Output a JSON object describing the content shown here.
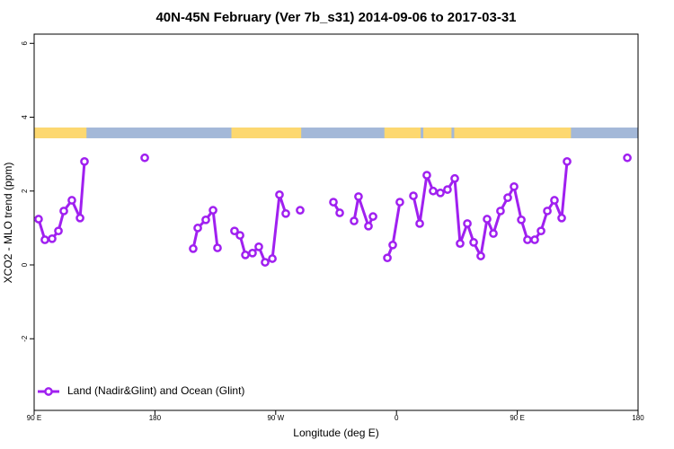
{
  "chart_data": {
    "type": "line",
    "title": "40N-45N February (Ver 7b_s31)   2014-09-06 to 2017-03-31",
    "x_label": "Longitude (deg E)",
    "y_label": "XCO2 - MLO trend (ppm)",
    "xlim": [
      90,
      540
    ],
    "ylim": [
      -3.94,
      6.25
    ],
    "xticks": [
      {
        "value": 90,
        "label": "90 E"
      },
      {
        "value": 180,
        "label": "180"
      },
      {
        "value": 270,
        "label": "90 W"
      },
      {
        "value": 360,
        "label": "0"
      },
      {
        "value": 450,
        "label": "90 E"
      },
      {
        "value": 540,
        "label": "180"
      }
    ],
    "yticks": [
      -2,
      0,
      2,
      4,
      6
    ],
    "legend": "bottomleft",
    "surface_band": {
      "ylim": [
        3.43,
        3.72
      ],
      "ocean_color": "#a3b8d8",
      "land_color": "#fdd870",
      "land": [
        [
          90,
          129
        ],
        [
          237,
          289
        ],
        [
          351,
          378
        ],
        [
          380,
          401
        ],
        [
          403,
          490
        ]
      ]
    },
    "x": [
      93.3,
      98.0,
      103.4,
      108.1,
      112.1,
      118.1,
      124.2,
      127.5,
      null,
      172.4,
      null,
      208.5,
      211.9,
      217.9,
      223.3,
      226.6,
      null,
      239.3,
      243.4,
      247.4,
      252.7,
      257.4,
      262.1,
      267.5,
      272.8,
      277.5,
      null,
      288.2,
      null,
      313.0,
      317.7,
      null,
      328.4,
      331.7,
      339.1,
      342.5,
      null,
      353.2,
      357.2,
      362.5,
      null,
      372.6,
      377.3,
      382.6,
      387.3,
      392.7,
      398.0,
      403.4,
      407.4,
      412.8,
      417.5,
      422.8,
      427.5,
      432.2,
      437.5,
      442.9,
      447.6,
      453.0,
      457.6,
      463.0,
      467.7,
      472.4,
      477.7,
      483.1,
      487.1,
      null,
      532.0
    ],
    "series": [
      {
        "name": "Land (Nadir&Glint) and Ocean (Glint)",
        "color": "#a020f0",
        "values": [
          1.24,
          0.68,
          0.71,
          0.92,
          1.46,
          1.75,
          1.27,
          2.8,
          null,
          2.9,
          null,
          0.44,
          1.0,
          1.22,
          1.48,
          0.46,
          null,
          0.92,
          0.8,
          0.27,
          0.32,
          0.49,
          0.07,
          0.17,
          1.9,
          1.39,
          null,
          1.48,
          null,
          1.7,
          1.41,
          null,
          1.19,
          1.85,
          1.05,
          1.31,
          null,
          0.19,
          0.54,
          1.7,
          null,
          1.87,
          1.12,
          2.43,
          2.0,
          1.95,
          2.04,
          2.34,
          0.58,
          1.12,
          0.61,
          0.24,
          1.24,
          0.85,
          1.46,
          1.82,
          2.12,
          1.22,
          0.68,
          0.68,
          0.92,
          1.46,
          1.75,
          1.27,
          2.8,
          null,
          2.9
        ]
      }
    ]
  }
}
